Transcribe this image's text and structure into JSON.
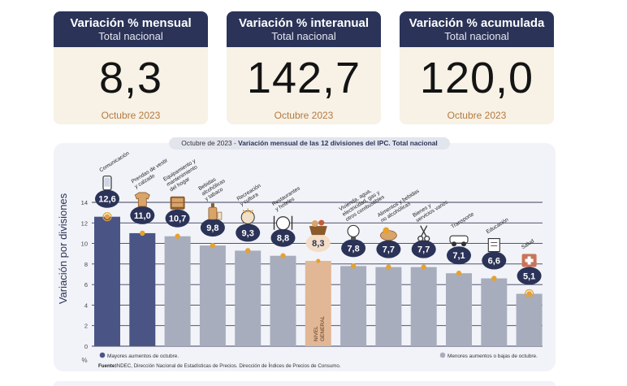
{
  "kpis": [
    {
      "title": "Variación % mensual",
      "subtitle": "Total nacional",
      "value": "8,3",
      "date": "Octubre 2023"
    },
    {
      "title": "Variación % interanual",
      "subtitle": "Total nacional",
      "value": "142,7",
      "date": "Octubre 2023"
    },
    {
      "title": "Variación % acumulada",
      "subtitle": "Total nacional",
      "value": "120,0",
      "date": "Octubre 2023"
    }
  ],
  "chart_title": {
    "date": "Octubre de 2023",
    "text": "Variación mensual de las 12 divisiones del IPC. Total nacional"
  },
  "chart_data": {
    "type": "bar",
    "ylabel": "Variación por divisiones",
    "ylim": [
      0,
      14
    ],
    "yticks": [
      0,
      2,
      4,
      6,
      8,
      10,
      12,
      14
    ],
    "y_unit": "%",
    "categories": [
      "Comunicación",
      "Prendas de vestir y calzado",
      "Equipamiento y mantenimiento del hogar",
      "Bebidas alcohólicas y tabaco",
      "Recreación y cultura",
      "Restaurantes y hoteles",
      "NIVEL GENERAL",
      "Vivienda, agua, electricidad, gas y otros combustibles",
      "Alimentos y bebidas no alcohólicas",
      "Bienes y servicios varios",
      "Transporte",
      "Educación",
      "Salud"
    ],
    "values": [
      12.6,
      11.0,
      10.7,
      9.8,
      9.3,
      8.8,
      8.3,
      7.8,
      7.7,
      7.7,
      7.1,
      6.6,
      5.1
    ],
    "value_labels": [
      "12,6",
      "11,0",
      "10,7",
      "9,8",
      "9,3",
      "8,8",
      "8,3",
      "7,8",
      "7,7",
      "7,7",
      "7,1",
      "6,6",
      "5,1"
    ],
    "label_lines": [
      [
        "Comunicación"
      ],
      [
        "Prendas de vestir",
        "y calzado"
      ],
      [
        "Equipamiento y",
        "mantenimiento",
        "del hogar"
      ],
      [
        "Bebidas",
        "alcohólicas",
        "y tabaco"
      ],
      [
        "Recreación",
        "y cultura"
      ],
      [
        "Restaurantes",
        "y hoteles"
      ],
      [],
      [
        "Vivienda, agua,",
        "electricidad, gas y",
        "otros combustibles"
      ],
      [
        "Alimentos y bebidas",
        "no alcohólicas"
      ],
      [
        "Bienes y",
        "servicios varios"
      ],
      [
        "Transporte"
      ],
      [
        "Educación"
      ],
      [
        "Salud"
      ]
    ],
    "nivel_general_label": [
      "NIVEL",
      "GENERAL"
    ],
    "groups": [
      "above",
      "above",
      "below",
      "below",
      "below",
      "below",
      "general",
      "below",
      "below",
      "below",
      "below",
      "below",
      "below"
    ],
    "icons": [
      "phone-icon",
      "shirt-icon",
      "furniture-icon",
      "bottle-icon",
      "recreation-icon",
      "restaurant-icon",
      "shopping-basket-icon",
      "lightbulb-icon",
      "food-icon",
      "scissors-icon",
      "car-icon",
      "book-icon",
      "medical-kit-icon"
    ],
    "colors": {
      "above": "#4a5586",
      "below": "#a7adbd",
      "general": "#e2b795",
      "bubble": "#2b3358",
      "dot": "#e6a132",
      "grid": "#3a3f5a"
    },
    "legend": {
      "above": "Mayores aumentos de octubre.",
      "below": "Menores aumentos o bajas de octubre."
    },
    "source_label": "Fuente:",
    "source_text": "INDEC, Dirección Nacional de Estadísticas de Precios. Dirección de Índices de Precios de Consumo."
  }
}
